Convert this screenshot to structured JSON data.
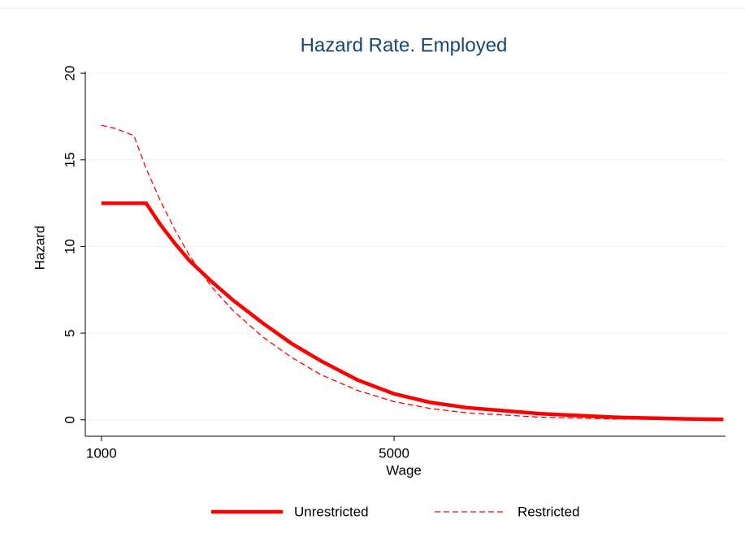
{
  "chart_data": {
    "type": "line",
    "title": "Hazard Rate. Employed",
    "x_label": "Wage",
    "y_label": "Hazard",
    "x": [
      1000,
      1200,
      1444,
      1611,
      1800,
      2000,
      2200,
      2500,
      2800,
      3200,
      3600,
      4000,
      4500,
      5000,
      5500,
      6000,
      7000,
      8000,
      9000,
      9500
    ],
    "series": [
      {
        "name": "Unrestricted",
        "color": "#ff0000",
        "style": "solid",
        "values": [
          12.5,
          12.5,
          12.5,
          12.5,
          11.3,
          10.2,
          9.2,
          8.0,
          6.9,
          5.6,
          4.4,
          3.4,
          2.3,
          1.5,
          1.0,
          0.7,
          0.35,
          0.15,
          0.05,
          0.02
        ]
      },
      {
        "name": "Restricted",
        "color": "#ff0000",
        "style": "dashed",
        "values": [
          17.0,
          16.8,
          16.4,
          14.5,
          12.7,
          11.0,
          9.5,
          7.7,
          6.3,
          4.8,
          3.6,
          2.6,
          1.7,
          1.05,
          0.65,
          0.4,
          0.15,
          0.05,
          0.01,
          0.0
        ]
      }
    ],
    "xlim": [
      780,
      9530
    ],
    "xticks": [
      1000,
      5000
    ],
    "ylim": [
      -0.95,
      20.1
    ],
    "yticks": [
      0,
      5,
      10,
      15,
      20
    ],
    "grid": true
  }
}
